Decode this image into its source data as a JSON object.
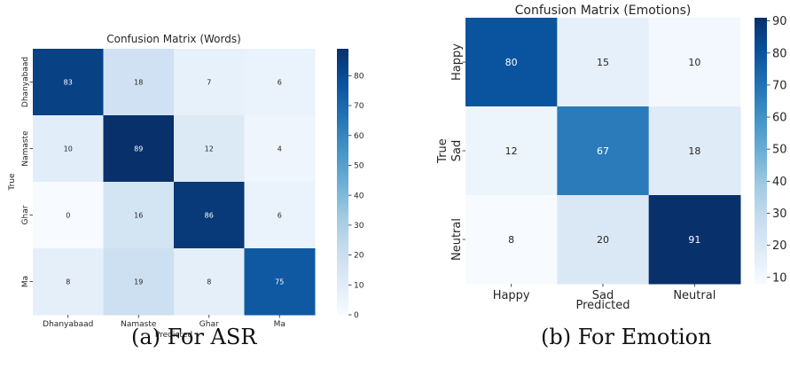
{
  "chart_data": [
    {
      "type": "heatmap",
      "title": "Confusion Matrix (Words)",
      "xlabel": "Predicted",
      "ylabel": "True",
      "x_categories": [
        "Dhanyabaad",
        "Namaste",
        "Ghar",
        "Ma"
      ],
      "y_categories": [
        "Dhanyabaad",
        "Namaste",
        "Ghar",
        "Ma"
      ],
      "values": [
        [
          83,
          18,
          7,
          6
        ],
        [
          10,
          89,
          12,
          4
        ],
        [
          0,
          16,
          86,
          6
        ],
        [
          8,
          19,
          8,
          75
        ]
      ],
      "colorbar": {
        "vmin": 0,
        "vmax": 89,
        "ticks": [
          0,
          10,
          20,
          30,
          40,
          50,
          60,
          70,
          80
        ]
      },
      "colormap": "Blues"
    },
    {
      "type": "heatmap",
      "title": "Confusion Matrix (Emotions)",
      "xlabel": "Predicted",
      "ylabel": "True",
      "x_categories": [
        "Happy",
        "Sad",
        "Neutral"
      ],
      "y_categories": [
        "Happy",
        "Sad",
        "Neutral"
      ],
      "values": [
        [
          80,
          15,
          10
        ],
        [
          12,
          67,
          18
        ],
        [
          8,
          20,
          91
        ]
      ],
      "colorbar": {
        "vmin": 8,
        "vmax": 91,
        "ticks": [
          10,
          20,
          30,
          40,
          50,
          60,
          70,
          80,
          90
        ]
      },
      "colormap": "Blues"
    }
  ],
  "captions": {
    "a": "(a) For ASR",
    "b": "(b) For Emotion"
  }
}
